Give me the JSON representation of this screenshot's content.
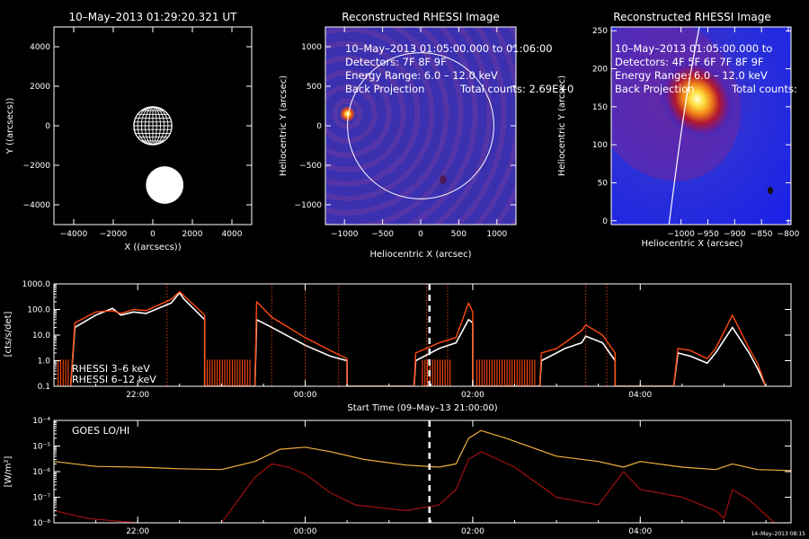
{
  "colors": {
    "white": "#ffffff",
    "red": "#ff4a10",
    "goes_lo": "#f4b040",
    "goes_hi": "#a01010"
  },
  "chart_data": [
    {
      "type": "scatter",
      "title": "10–May–2013 01:29:20.321 UT",
      "xlabel": "X ((arcsecs))",
      "ylabel": "Y ((arcsecs))",
      "xlim": [
        -5000,
        5000
      ],
      "ylim": [
        -5000,
        5000
      ],
      "xticks": [
        "−4000",
        "−2000",
        "0",
        "2000",
        "4000"
      ],
      "yticks": [
        "4000",
        "2000",
        "0",
        "−2000",
        "−4000"
      ],
      "objects": [
        {
          "name": "",
          "x": 0,
          "y": 0,
          "r": 960,
          "style": "grid"
        },
        {
          "name": "",
          "x": 600,
          "y": -3000,
          "r": 950,
          "style": "filled"
        }
      ]
    },
    {
      "type": "heatmap",
      "title": "Reconstructed RHESSI Image",
      "xlabel": "Heliocentric X (arcsec)",
      "ylabel": "Heliocentric Y (arcsec)",
      "xlim": [
        -1250,
        1250
      ],
      "ylim": [
        -1250,
        1250
      ],
      "xticks": [
        "−1000",
        "−500",
        "0",
        "500",
        "1000"
      ],
      "yticks": [
        "1000",
        "500",
        "0",
        "−500",
        "−1000"
      ],
      "overlay": [
        "10–May–2013 01:05:00.000 to 01:06:00",
        "Detectors: 7F 8F 9F",
        "Energy Range: 6.0 – 12.0 keV",
        "Back Projection",
        "Total counts: 2.69E+0"
      ],
      "source": {
        "x": -960,
        "y": 150
      }
    },
    {
      "type": "heatmap",
      "title": "Reconstructed RHESSI Image",
      "xlabel": "Heliocentric X (arcsec)",
      "ylabel": "Heliocentric Y (arcsec)",
      "xlim": [
        -1130,
        -795
      ],
      "ylim": [
        -5,
        255
      ],
      "xticks": [
        "−1000",
        "−950",
        "−900",
        "−850",
        "−800"
      ],
      "yticks": [
        "250",
        "200",
        "150",
        "100",
        "50",
        "0"
      ],
      "overlay": [
        "10–May–2013 01:05:00.000 to",
        "Detectors: 4F 5F 6F 7F 8F 9F",
        "Energy Range: 6.0 – 12.0 keV",
        "Back Projection",
        "Total counts:"
      ],
      "source": {
        "x": -970,
        "y": 160
      }
    },
    {
      "type": "line",
      "xlabel": "Start Time (09–May–13 21:00:00)",
      "ylabel": "[cts/s/det]",
      "ylim": [
        0.1,
        1000
      ],
      "yscale": "log",
      "xlim": [
        -1.0,
        7.8
      ],
      "xticks": [
        "22:00",
        "00:00",
        "02:00",
        "04:00"
      ],
      "yticks": [
        "1000.0",
        "100.0",
        "10.0",
        "1.0",
        "0.1"
      ],
      "current_time": "01:29",
      "series": [
        {
          "name": "RHESSI  3–6 keV",
          "x": [
            -0.8,
            -0.75,
            -0.5,
            -0.3,
            -0.2,
            -0.05,
            0.1,
            0.4,
            0.5,
            0.55,
            0.8,
            0.8,
            1.4,
            1.42,
            1.6,
            2.0,
            2.3,
            2.5,
            2.5,
            3.3,
            3.32,
            3.6,
            3.8,
            3.95,
            4.0,
            4.0,
            4.8,
            4.82,
            5.0,
            5.1,
            5.3,
            5.35,
            5.55,
            5.7,
            5.7,
            6.4,
            6.45,
            6.6,
            6.8,
            6.9,
            7.1,
            7.3,
            7.4,
            7.5
          ],
          "y": [
            0.1,
            20,
            60,
            110,
            60,
            80,
            70,
            180,
            450,
            260,
            40,
            0.1,
            0.1,
            40,
            20,
            4,
            1.5,
            1,
            0.1,
            0.1,
            1,
            3,
            5,
            40,
            30,
            0.1,
            0.1,
            1,
            2,
            3,
            5,
            9,
            5,
            1,
            0.1,
            0.1,
            2,
            1.5,
            0.8,
            2,
            20,
            2,
            0.5,
            0.1
          ]
        },
        {
          "name": "RHESSI  6–12 keV",
          "x": [
            -0.8,
            -0.75,
            -0.5,
            -0.3,
            -0.2,
            -0.05,
            0.1,
            0.4,
            0.5,
            0.55,
            0.8,
            0.8,
            1.4,
            1.42,
            1.6,
            2.0,
            2.3,
            2.5,
            2.5,
            3.3,
            3.32,
            3.6,
            3.8,
            3.95,
            4.0,
            4.0,
            4.8,
            4.82,
            5.0,
            5.1,
            5.3,
            5.35,
            5.55,
            5.7,
            5.7,
            6.4,
            6.45,
            6.6,
            6.8,
            6.9,
            7.1,
            7.3,
            7.4,
            7.5
          ],
          "y": [
            0.1,
            30,
            80,
            90,
            70,
            100,
            90,
            250,
            500,
            350,
            60,
            0.1,
            0.1,
            200,
            50,
            8,
            2.5,
            1.2,
            0.1,
            0.1,
            2,
            5,
            8,
            180,
            80,
            0.1,
            0.1,
            2,
            3,
            5,
            15,
            25,
            10,
            2,
            0.1,
            0.1,
            3,
            2.5,
            1.2,
            3,
            60,
            3,
            0.8,
            0.1
          ]
        }
      ]
    },
    {
      "type": "line",
      "title": "GOES LO/HI",
      "xlabel": "Start Time (09–May–13 21:00:00)",
      "ylabel": "[W/m²]",
      "ylim": [
        1e-08,
        0.0001
      ],
      "yscale": "log",
      "xlim": [
        -1.0,
        7.8
      ],
      "xticks": [
        "22:00",
        "00:00",
        "02:00",
        "04:00"
      ],
      "yticks": [
        "10⁻⁴",
        "10⁻⁵",
        "10⁻⁶",
        "10⁻⁷",
        "10⁻⁸"
      ],
      "current_time": "01:29",
      "timestamp": "14–May–2013 08:15",
      "series": [
        {
          "name": "",
          "x": [
            -1.0,
            -0.5,
            0.0,
            0.5,
            1.0,
            1.4,
            1.7,
            2.0,
            2.3,
            2.7,
            3.2,
            3.6,
            3.8,
            3.95,
            4.1,
            4.4,
            5.0,
            5.5,
            5.8,
            6.0,
            6.5,
            6.9,
            7.1,
            7.4,
            7.8
          ],
          "y": [
            2.5e-06,
            1.6e-06,
            1.5e-06,
            1.3e-06,
            1.2e-06,
            2.5e-06,
            7.5e-06,
            9e-06,
            6e-06,
            3e-06,
            1.8e-06,
            1.5e-06,
            2e-06,
            2e-05,
            4e-05,
            2e-05,
            4e-06,
            2.5e-06,
            1.5e-06,
            2.5e-06,
            1.5e-06,
            1.2e-06,
            2e-06,
            1.2e-06,
            1.1e-06
          ]
        },
        {
          "name": "",
          "x": [
            -1.0,
            -0.6,
            -0.3,
            0.0,
            0.4,
            0.8,
            1.0,
            1.4,
            1.6,
            1.8,
            2.0,
            2.3,
            2.6,
            3.2,
            3.6,
            3.8,
            3.95,
            4.1,
            4.5,
            5.0,
            5.5,
            5.8,
            6.0,
            6.5,
            6.9,
            7.0,
            7.1,
            7.3,
            7.6,
            7.8
          ],
          "y": [
            3e-08,
            1.5e-08,
            1.2e-08,
            1e-08,
            1e-08,
            1e-08,
            1e-08,
            6e-07,
            2e-06,
            1.5e-06,
            8e-07,
            1.5e-07,
            5e-08,
            3e-08,
            5e-08,
            2e-07,
            3e-06,
            6e-06,
            1.5e-06,
            1e-07,
            5e-08,
            1e-06,
            2e-07,
            1e-07,
            3e-08,
            1.5e-08,
            2e-07,
            8e-08,
            1e-08,
            1e-08
          ]
        }
      ]
    }
  ]
}
